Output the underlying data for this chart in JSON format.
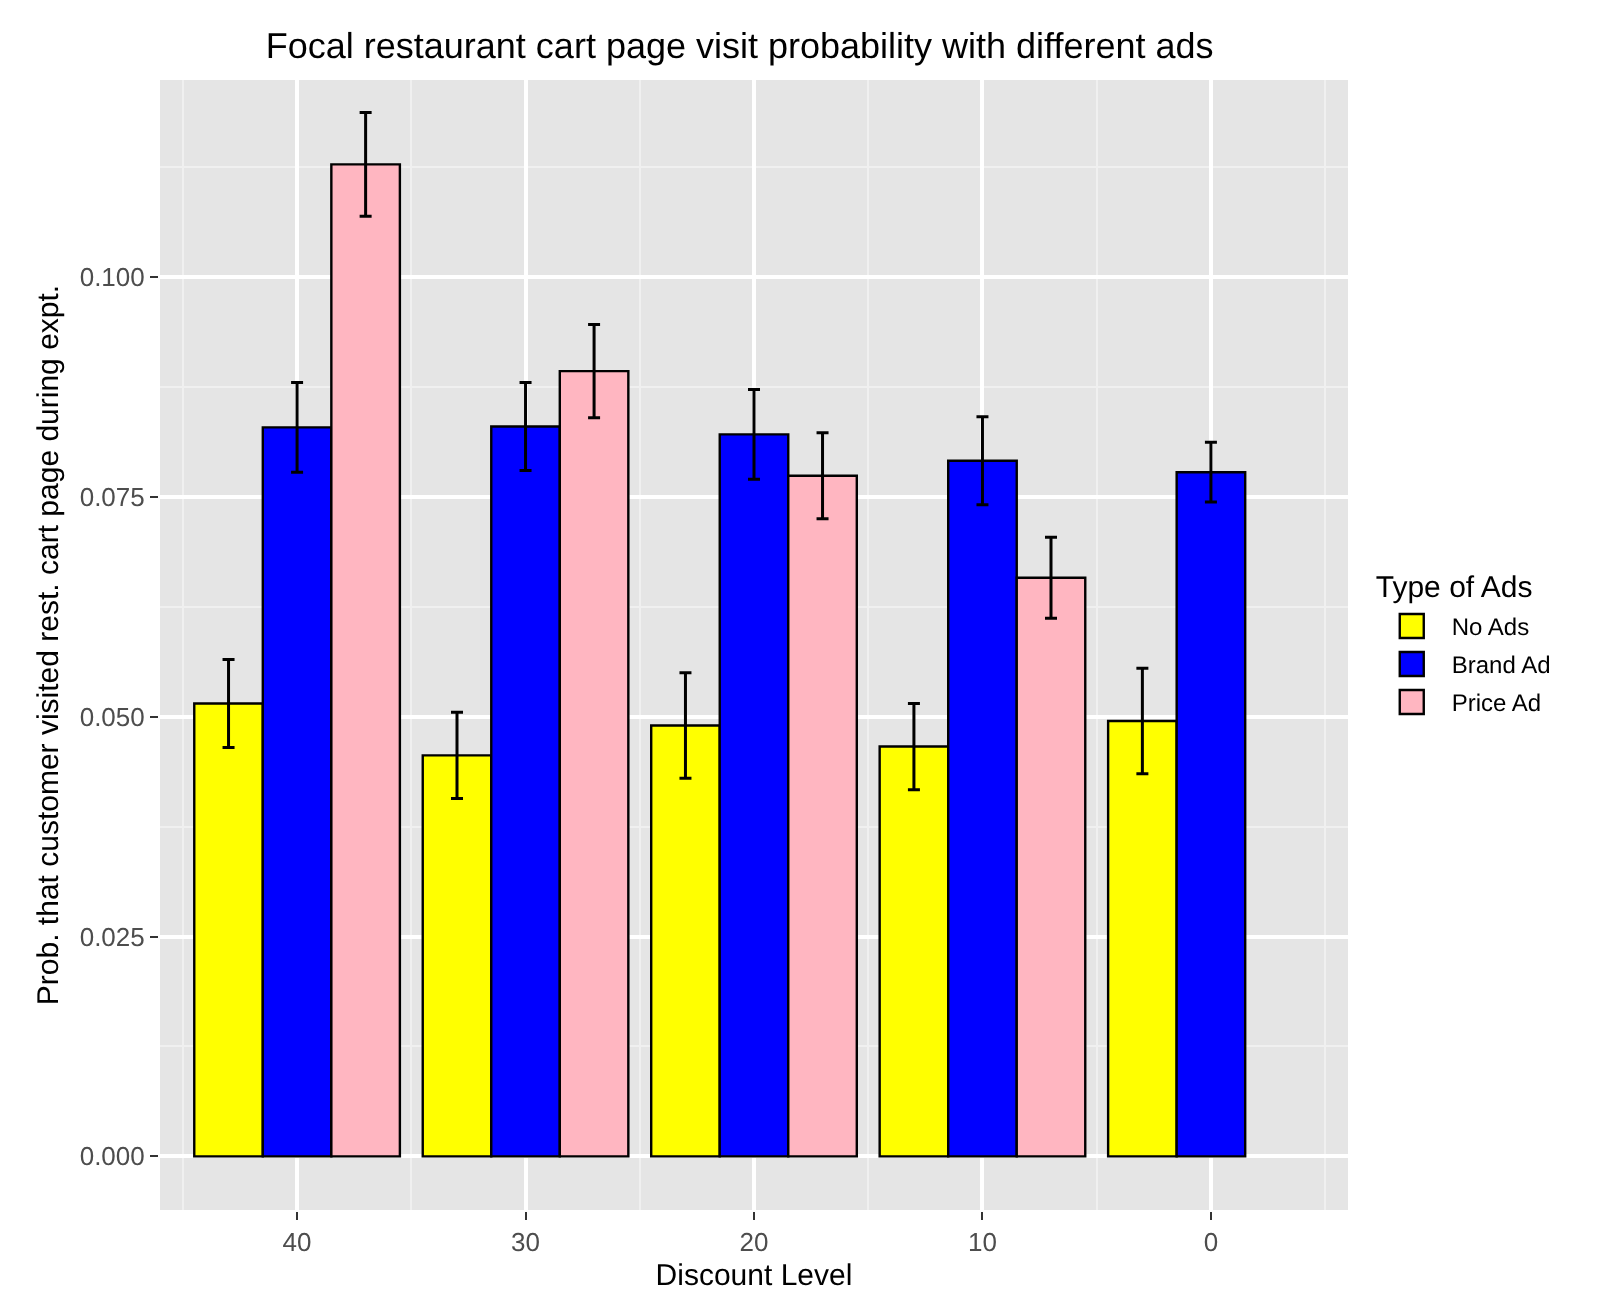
{
  "chart_data": {
    "type": "bar",
    "title": "Focal restaurant cart page visit probability with different ads",
    "xlabel": "Discount Level",
    "ylabel": "Prob. that customer visited rest. cart page during expt.",
    "legend_title": "Type of Ads",
    "legend": "right",
    "categories": [
      "40",
      "30",
      "20",
      "10",
      "0"
    ],
    "series": [
      {
        "name": "No Ads",
        "color": "#ffff00",
        "values": [
          0.0515,
          0.0456,
          0.049,
          0.0466,
          0.0495
        ],
        "errors": [
          0.005,
          0.0049,
          0.006,
          0.0049,
          0.006
        ]
      },
      {
        "name": "Brand Ad",
        "color": "#0000ff",
        "values": [
          0.0829,
          0.083,
          0.0821,
          0.0791,
          0.0778
        ],
        "errors": [
          0.0051,
          0.005,
          0.0051,
          0.005,
          0.0034
        ]
      },
      {
        "name": "Price Ad",
        "color": "#ffb6c1",
        "values": [
          0.1128,
          0.0893,
          0.0774,
          0.0658,
          null
        ],
        "errors": [
          0.0059,
          0.0053,
          0.0049,
          0.0046,
          null
        ]
      }
    ],
    "ylim": [
      -0.0061,
      0.1224
    ],
    "yticks": [
      {
        "value": 0,
        "label": "0.000"
      },
      {
        "value": 0.025,
        "label": "0.025"
      },
      {
        "value": 0.05,
        "label": "0.050"
      },
      {
        "value": 0.075,
        "label": "0.075"
      },
      {
        "value": 0.1,
        "label": "0.100"
      }
    ],
    "grid": true
  }
}
